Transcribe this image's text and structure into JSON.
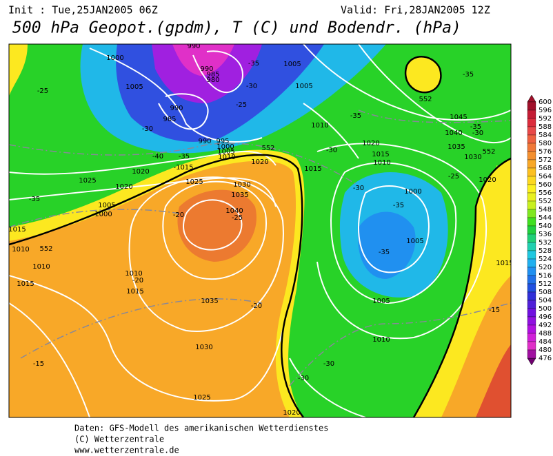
{
  "header": {
    "init": "Init : Tue,25JAN2005 06Z",
    "valid": "Valid: Fri,28JAN2005 12Z",
    "title": "500 hPa Geopot.(gpdm), T (C) und Bodendr. (hPa)"
  },
  "map": {
    "labels": [
      "1000",
      "990",
      "990",
      "985",
      "980",
      "1005",
      "990",
      "985",
      "-35",
      "1005",
      "-30",
      "1005",
      "-25",
      "-25",
      "-30",
      "990",
      "995",
      "1000",
      "1005",
      "1010",
      "-40",
      "-35",
      "-1015",
      "1020",
      "1025",
      "1020",
      "1025",
      "1020",
      "1030",
      "1035",
      "1040",
      "-25",
      "-20",
      "1005",
      "1000",
      "-35",
      "1015",
      "1010",
      "1010",
      "1010",
      "-20",
      "1015",
      "1015",
      "1035",
      "-20",
      "1030",
      "-15",
      "1025",
      "1020",
      "-30",
      "-30",
      "1010",
      "1005",
      "-35",
      "1005",
      "1000",
      "-35",
      "-30",
      "1015",
      "1020",
      "1015",
      "1010",
      "1010",
      "-35",
      "-30",
      "1045",
      "1040",
      "-35",
      "-30",
      "1035",
      "1030",
      "-35",
      "-25",
      "1020",
      "-15",
      "1015",
      "552",
      "552",
      "552",
      "552"
    ]
  },
  "colorbar": {
    "labels": [
      "600",
      "596",
      "592",
      "588",
      "584",
      "580",
      "576",
      "572",
      "568",
      "564",
      "560",
      "556",
      "552",
      "548",
      "544",
      "540",
      "536",
      "532",
      "528",
      "524",
      "520",
      "516",
      "512",
      "508",
      "504",
      "500",
      "496",
      "492",
      "488",
      "484",
      "480",
      "476"
    ],
    "colors": [
      "#a0102a",
      "#c41c34",
      "#dc2c3c",
      "#e84848",
      "#ee6040",
      "#f07838",
      "#f49030",
      "#f8a828",
      "#fcc020",
      "#fcd820",
      "#fcf020",
      "#e8f020",
      "#c8f020",
      "#80e820",
      "#40e020",
      "#20d040",
      "#20d078",
      "#20d0b0",
      "#20c8e0",
      "#20b0f0",
      "#2090f0",
      "#2070e8",
      "#2050e0",
      "#3030d8",
      "#5020d8",
      "#7010e0",
      "#9010e0",
      "#b010e0",
      "#d020d8",
      "#e030c8",
      "#a010a0",
      "#700070"
    ]
  },
  "footer": {
    "line1": "Daten: GFS-Modell des amerikanischen Wetterdienstes",
    "line2": "(C) Wetterzentrale",
    "line3": "www.wetterzentrale.de"
  }
}
